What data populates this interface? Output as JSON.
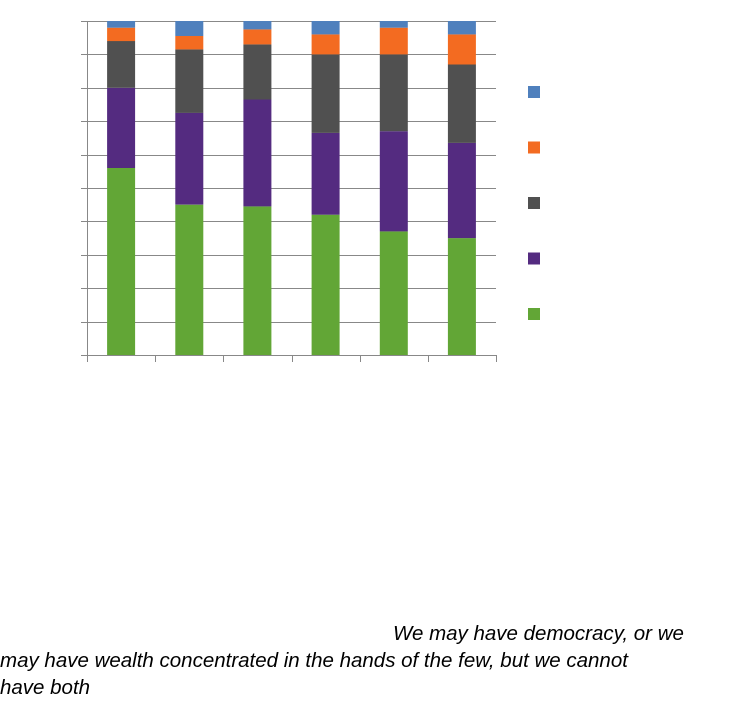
{
  "chart_data": {
    "type": "bar",
    "stacked": true,
    "categories": [
      "",
      "",
      "",
      "",
      "",
      ""
    ],
    "series": [
      {
        "values": [
          56,
          45,
          44.5,
          42,
          37,
          35
        ],
        "color": "#62a636"
      },
      {
        "values": [
          24,
          27.5,
          32,
          24.5,
          30,
          28.5
        ],
        "color": "#542b80"
      },
      {
        "values": [
          14,
          19,
          16.5,
          23.5,
          23,
          23.5
        ],
        "color": "#505050"
      },
      {
        "values": [
          4,
          4,
          4.5,
          6,
          8,
          9
        ],
        "color": "#f36b21"
      },
      {
        "values": [
          2,
          4.5,
          2.5,
          4,
          2,
          4
        ],
        "color": "#4f80bd"
      }
    ],
    "ylim": [
      0,
      100
    ],
    "gridlines": true,
    "legend": {
      "position": "right",
      "order": "reversed"
    }
  },
  "quote": {
    "line1": "We may have democracy, or we",
    "line2": "may have wealth concentrated in the hands of the few, but we cannot",
    "line3": "have both"
  }
}
